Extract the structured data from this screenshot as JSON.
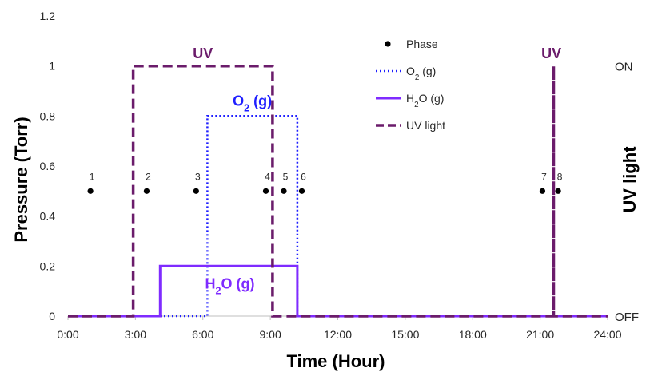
{
  "chart_data": {
    "type": "line",
    "xlabel": "Time (Hour)",
    "ylabel": "Pressure (Torr)",
    "y2label": "UV light",
    "xlim": [
      0,
      24
    ],
    "ylim": [
      0,
      1.2
    ],
    "x_ticks": [
      "0:00",
      "3:00",
      "6:00",
      "9:00",
      "12:00",
      "15:00",
      "18:00",
      "21:00",
      "24:00"
    ],
    "y_ticks": [
      "0",
      "0.2",
      "0.4",
      "0.6",
      "0.8",
      "1",
      "1.2"
    ],
    "y2_ticks": [
      {
        "label": "ON",
        "value": 1
      },
      {
        "label": "OFF",
        "value": 0
      }
    ],
    "legend_position": "top-right",
    "series": [
      {
        "name": "Phase",
        "style": "markers",
        "color": "#000000",
        "points": [
          {
            "x": 1.0,
            "y": 0.5,
            "label": "1"
          },
          {
            "x": 3.5,
            "y": 0.5,
            "label": "2"
          },
          {
            "x": 5.7,
            "y": 0.5,
            "label": "3"
          },
          {
            "x": 8.8,
            "y": 0.5,
            "label": "4"
          },
          {
            "x": 9.6,
            "y": 0.5,
            "label": "5"
          },
          {
            "x": 10.4,
            "y": 0.5,
            "label": "6"
          },
          {
            "x": 21.1,
            "y": 0.5,
            "label": "7"
          },
          {
            "x": 21.8,
            "y": 0.5,
            "label": "8"
          }
        ]
      },
      {
        "name": "O₂ (g)",
        "style": "dotted",
        "color": "#1f1fff",
        "x": [
          0,
          4.1,
          4.1,
          6.2,
          6.2,
          10.2,
          10.2,
          24
        ],
        "y": [
          0,
          0,
          0,
          0,
          0.8,
          0.8,
          0,
          0
        ]
      },
      {
        "name": "H₂O (g)",
        "style": "solid",
        "color": "#7f2bff",
        "x": [
          0,
          4.1,
          4.1,
          10.2,
          10.2,
          24
        ],
        "y": [
          0,
          0,
          0.2,
          0.2,
          0,
          0
        ]
      },
      {
        "name": "UV light",
        "style": "dashed",
        "color": "#6b1c6b",
        "x": [
          0,
          2.9,
          2.9,
          9.1,
          9.1,
          21.6,
          21.6,
          21.6,
          24
        ],
        "y": [
          0,
          0,
          1,
          1,
          0,
          0,
          1,
          0,
          0
        ]
      }
    ],
    "annotations": [
      {
        "text": "UV",
        "x": 6.0,
        "y": 1.05,
        "color": "#6b1c6b"
      },
      {
        "text": "O₂ (g)",
        "x": 8.2,
        "y": 0.86,
        "color": "#1f1fff"
      },
      {
        "text": "H₂O (g)",
        "x": 7.2,
        "y": 0.13,
        "color": "#7f2bff"
      },
      {
        "text": "UV",
        "x": 21.5,
        "y": 1.05,
        "color": "#6b1c6b"
      }
    ]
  }
}
